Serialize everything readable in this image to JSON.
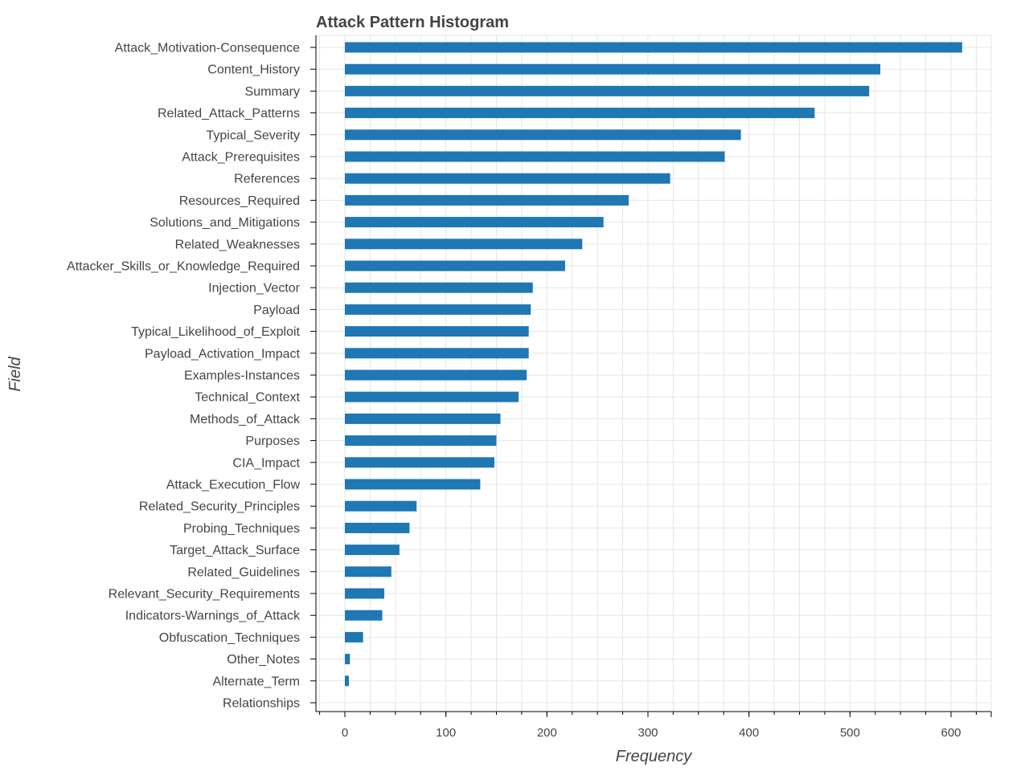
{
  "chart_data": {
    "type": "bar",
    "orientation": "horizontal",
    "title": "Attack Pattern Histogram",
    "xlabel": "Frequency",
    "ylabel": "Field",
    "xlim": [
      -30,
      640
    ],
    "xticks": [
      0,
      100,
      200,
      300,
      400,
      500,
      600
    ],
    "grid": true,
    "bar_color": "#1f77b4",
    "categories": [
      "Attack_Motivation-Consequence",
      "Content_History",
      "Summary",
      "Related_Attack_Patterns",
      "Typical_Severity",
      "Attack_Prerequisites",
      "References",
      "Resources_Required",
      "Solutions_and_Mitigations",
      "Related_Weaknesses",
      "Attacker_Skills_or_Knowledge_Required",
      "Injection_Vector",
      "Payload",
      "Typical_Likelihood_of_Exploit",
      "Payload_Activation_Impact",
      "Examples-Instances",
      "Technical_Context",
      "Methods_of_Attack",
      "Purposes",
      "CIA_Impact",
      "Attack_Execution_Flow",
      "Related_Security_Principles",
      "Probing_Techniques",
      "Target_Attack_Surface",
      "Related_Guidelines",
      "Relevant_Security_Requirements",
      "Indicators-Warnings_of_Attack",
      "Obfuscation_Techniques",
      "Other_Notes",
      "Alternate_Term",
      "Relationships"
    ],
    "values": [
      611,
      530,
      519,
      465,
      392,
      376,
      322,
      281,
      256,
      235,
      218,
      186,
      184,
      182,
      182,
      180,
      172,
      154,
      150,
      148,
      134,
      71,
      64,
      54,
      46,
      39,
      37,
      18,
      5,
      4,
      0
    ]
  }
}
